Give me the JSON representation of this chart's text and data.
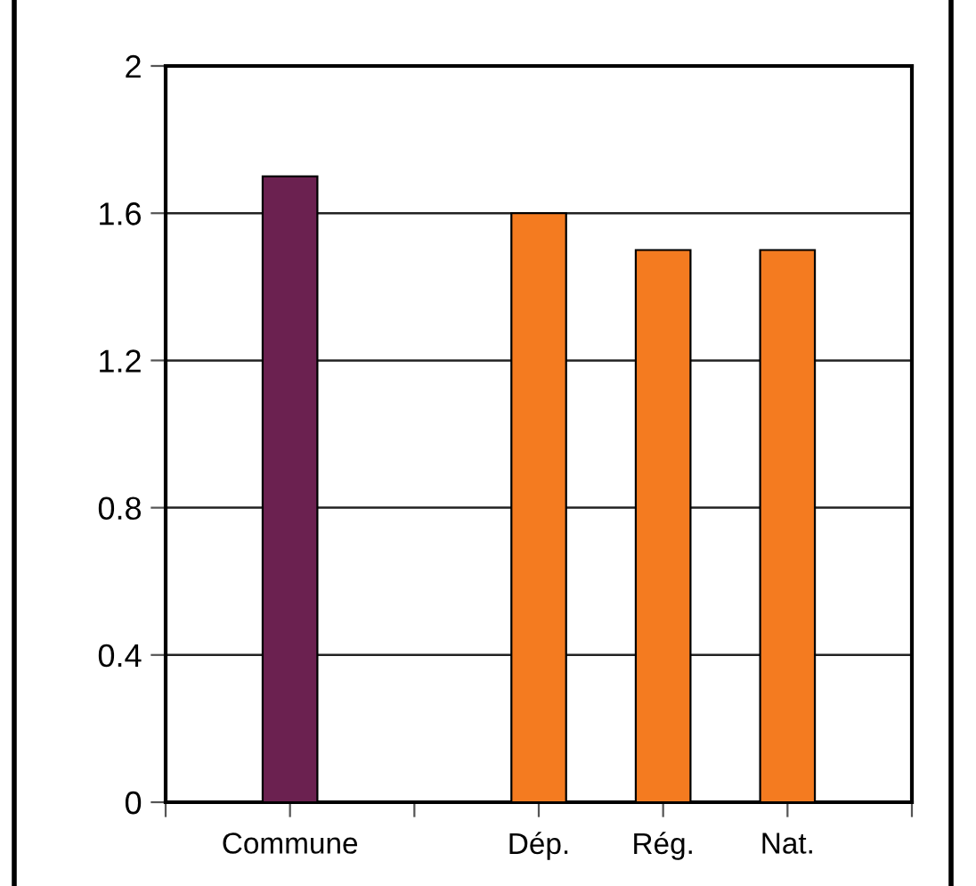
{
  "chart_data": {
    "type": "bar",
    "categories": [
      "Commune",
      null,
      "Dép.",
      "Rég.",
      "Nat."
    ],
    "values": [
      1.7,
      null,
      1.6,
      1.5,
      1.5
    ],
    "colors": [
      "#6b2150",
      "#f47b20",
      "#f47b20",
      "#f47b20",
      "#f47b20"
    ],
    "ylim": [
      0,
      2
    ],
    "yticks": [
      0,
      0.4,
      0.8,
      1.2,
      1.6,
      2
    ],
    "grid": "y",
    "legend": false
  }
}
